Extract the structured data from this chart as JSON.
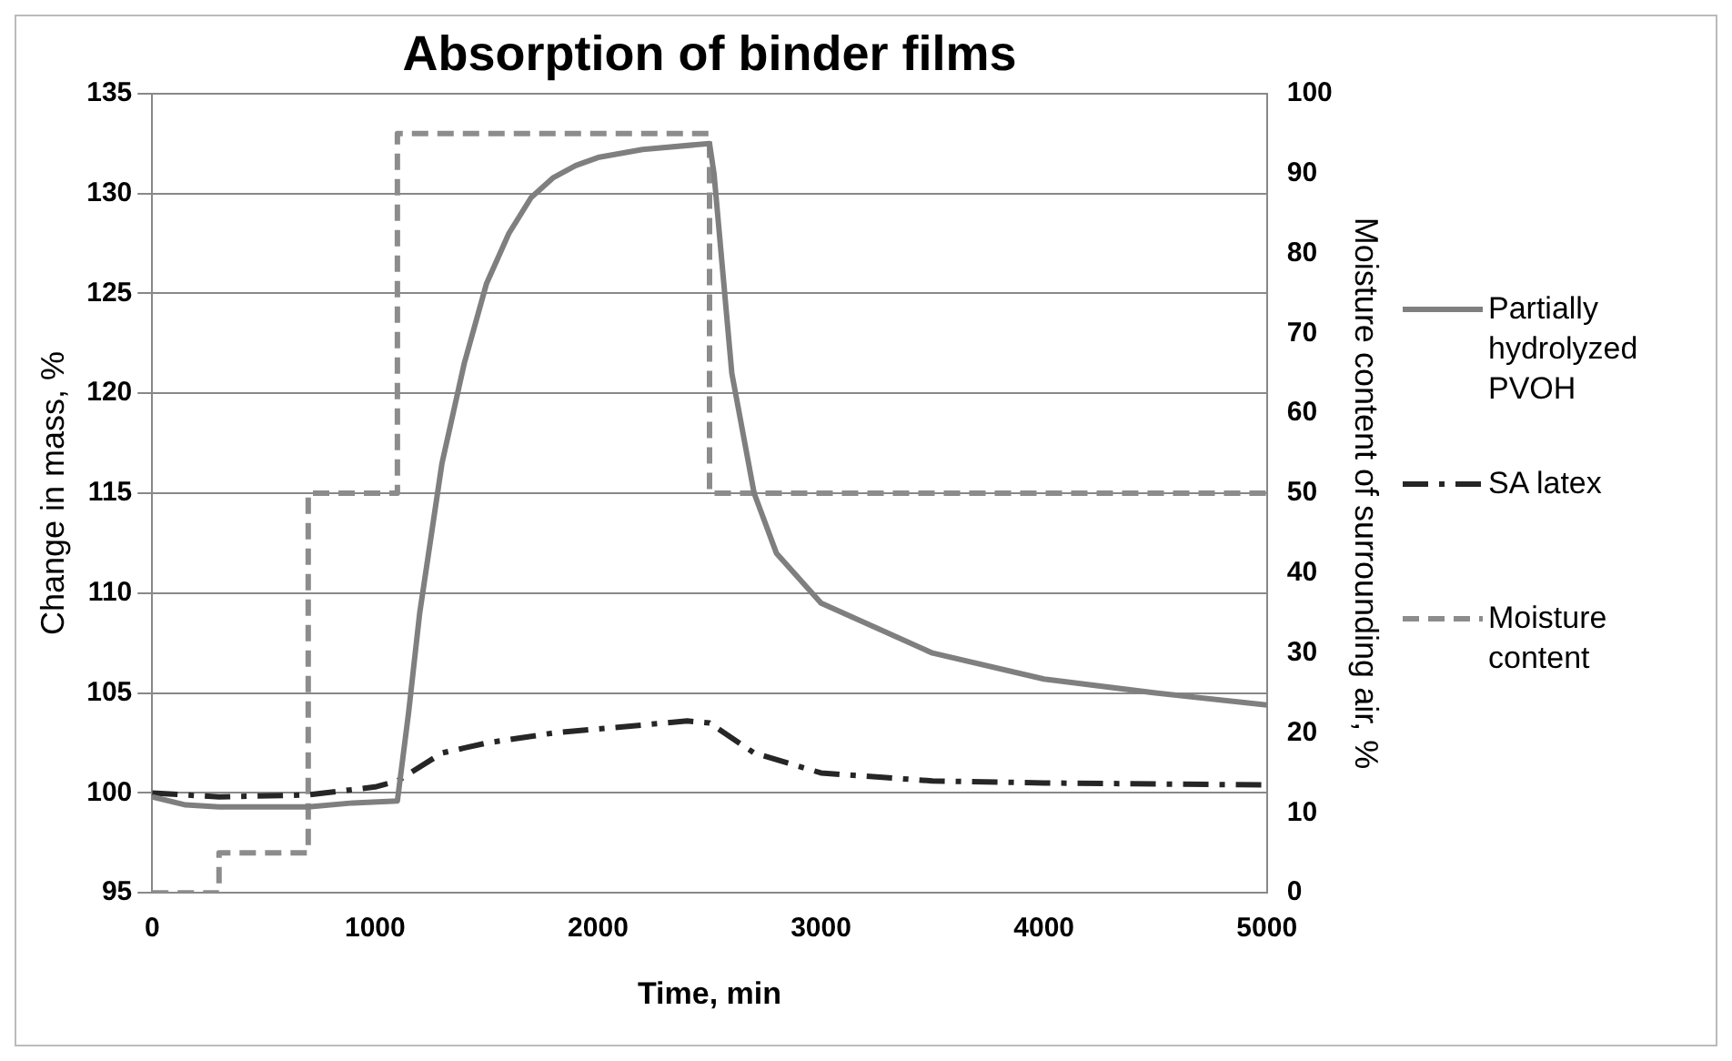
{
  "chart_data": {
    "type": "line",
    "title": "Absorption of binder films",
    "xlabel": "Time, min",
    "ylabel": "Change in mass, %",
    "y2label": "Moisture content of surrounding air, %",
    "xlim": [
      0,
      5000
    ],
    "xticks": [
      0,
      1000,
      2000,
      3000,
      4000,
      5000
    ],
    "ylim": [
      95,
      135
    ],
    "yticks": [
      95,
      100,
      105,
      110,
      115,
      120,
      125,
      130,
      135
    ],
    "y2lim": [
      0,
      100
    ],
    "y2ticks": [
      0,
      10,
      20,
      30,
      40,
      50,
      60,
      70,
      80,
      90,
      100
    ],
    "grid": "y",
    "legend": "right",
    "marker": "none",
    "series": [
      {
        "name": "Partially hydrolyzed PVOH",
        "color": "#7f7f7f",
        "line_style": "solid",
        "x": [
          0,
          150,
          300,
          500,
          700,
          900,
          1100,
          1150,
          1200,
          1300,
          1400,
          1500,
          1600,
          1700,
          1800,
          1900,
          2000,
          2200,
          2500,
          2520,
          2560,
          2600,
          2700,
          2800,
          3000,
          3500,
          4000,
          4500,
          5000
        ],
        "values": [
          99.8,
          99.4,
          99.3,
          99.3,
          99.3,
          99.5,
          99.6,
          104,
          109,
          116.5,
          121.5,
          125.5,
          128,
          129.8,
          130.8,
          131.4,
          131.8,
          132.2,
          132.5,
          131,
          126,
          121,
          115,
          112,
          109.5,
          107,
          105.7,
          105,
          104.4
        ]
      },
      {
        "name": "SA latex",
        "color": "#262626",
        "line_style": "dashdot",
        "x": [
          0,
          300,
          700,
          1000,
          1100,
          1300,
          1500,
          1800,
          2100,
          2400,
          2500,
          2700,
          3000,
          3500,
          4000,
          5000
        ],
        "values": [
          100,
          99.8,
          99.9,
          100.3,
          100.6,
          102,
          102.5,
          103,
          103.3,
          103.6,
          103.5,
          102,
          101,
          100.6,
          100.5,
          100.4
        ]
      },
      {
        "name": "Moisture content",
        "color": "#8c8c8c",
        "type": "step",
        "axis": "y2",
        "line_style": "dashed",
        "x": [
          0,
          300,
          700,
          1100,
          2500,
          5000
        ],
        "values": [
          0,
          5,
          50,
          95,
          50,
          50
        ]
      }
    ]
  }
}
